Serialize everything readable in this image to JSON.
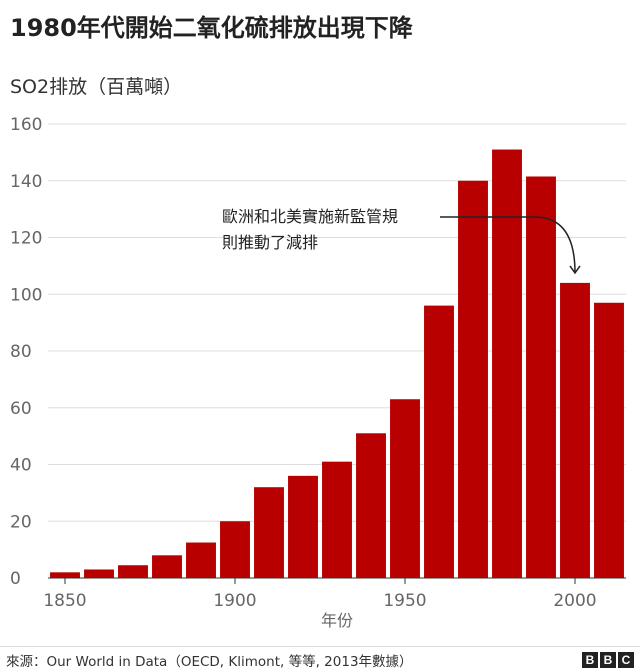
{
  "title": "1980年代開始二氧化硫排放出現下降",
  "source": "來源：Our World in Data（OECD, Klimont, 等等, 2013年數據）",
  "logo": [
    "B",
    "B",
    "C"
  ],
  "colors": {
    "bar": "#b80000",
    "grid": "#dddddd",
    "axis": "#333333"
  },
  "chart_data": {
    "type": "bar",
    "title": "1980年代開始二氧化硫排放出現下降",
    "ylabel": "SO2排放（百萬噸）",
    "xlabel": "年份",
    "ylim": [
      0,
      160
    ],
    "yticks": [
      0,
      20,
      40,
      60,
      80,
      100,
      120,
      140,
      160
    ],
    "xticks": [
      1850,
      1900,
      1950,
      2000
    ],
    "x": [
      1850,
      1860,
      1870,
      1880,
      1890,
      1900,
      1910,
      1920,
      1930,
      1940,
      1950,
      1960,
      1970,
      1980,
      1990,
      2000,
      2010
    ],
    "values": [
      2,
      3,
      4.5,
      8,
      12.5,
      20,
      32,
      36,
      41,
      51,
      63,
      96,
      140,
      151,
      141.5,
      104,
      97
    ],
    "grid": true,
    "annotation": {
      "lines": [
        "歐洲和北美實施新監管規",
        "則推動了減排"
      ],
      "target_x": 2000
    }
  }
}
